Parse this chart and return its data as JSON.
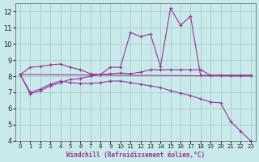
{
  "bg_color": "#c8eaea",
  "grid_color": "#b0c8c8",
  "line_color": "#993399",
  "xlabel": "Windchill (Refroidissement éolien,°C)",
  "xlim": [
    -0.5,
    23.5
  ],
  "ylim": [
    4,
    12.5
  ],
  "xticks": [
    0,
    1,
    2,
    3,
    4,
    5,
    6,
    7,
    8,
    9,
    10,
    11,
    12,
    13,
    14,
    15,
    16,
    17,
    18,
    19,
    20,
    21,
    22,
    23
  ],
  "yticks": [
    4,
    5,
    6,
    7,
    8,
    9,
    10,
    11,
    12
  ],
  "series1_wavy": {
    "x": [
      0,
      1,
      2,
      3,
      4,
      5,
      6,
      7,
      8,
      9,
      10,
      11,
      12,
      13,
      14,
      15,
      16,
      17,
      18,
      19,
      20,
      21,
      22,
      23
    ],
    "y": [
      8.1,
      6.9,
      7.1,
      7.4,
      7.6,
      7.8,
      7.85,
      8.0,
      8.1,
      8.55,
      8.55,
      10.7,
      10.45,
      10.6,
      8.6,
      12.2,
      11.15,
      11.7,
      8.05,
      8.05,
      8.05,
      8.05,
      8.05,
      8.05
    ]
  },
  "series2_avg": {
    "x": [
      0,
      1,
      2,
      3,
      4,
      5,
      6,
      7,
      8,
      9,
      10,
      11,
      12,
      13,
      14,
      15,
      16,
      17,
      18,
      19,
      20,
      21,
      22,
      23
    ],
    "y": [
      8.1,
      8.55,
      8.6,
      8.7,
      8.75,
      8.55,
      8.4,
      8.15,
      8.1,
      8.15,
      8.2,
      8.15,
      8.25,
      8.4,
      8.4,
      8.4,
      8.4,
      8.4,
      8.4,
      8.05,
      8.05,
      8.05,
      8.05,
      8.05
    ]
  },
  "series3_flat": {
    "x": [
      0,
      23
    ],
    "y": [
      8.1,
      8.0
    ]
  },
  "series4_diag": {
    "x": [
      0,
      1,
      2,
      3,
      4,
      5,
      6,
      7,
      8,
      9,
      10,
      11,
      12,
      13,
      14,
      15,
      16,
      17,
      18,
      19,
      20,
      21,
      22,
      23
    ],
    "y": [
      8.1,
      7.0,
      7.2,
      7.5,
      7.7,
      7.6,
      7.55,
      7.55,
      7.6,
      7.7,
      7.7,
      7.6,
      7.5,
      7.4,
      7.3,
      7.1,
      6.95,
      6.8,
      6.6,
      6.4,
      6.35,
      5.2,
      4.6,
      4.0
    ]
  }
}
